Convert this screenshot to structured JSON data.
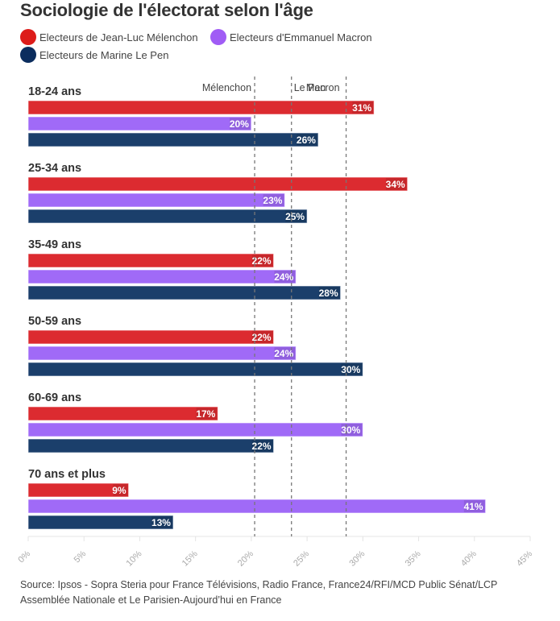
{
  "title": "Sociologie de l'électorat selon l'âge",
  "legend": [
    {
      "label": "Electeurs de Jean-Luc Mélenchon",
      "color": "#dd1c1a"
    },
    {
      "label": "Electeurs d'Emmanuel Macron",
      "color": "#a05cf5"
    },
    {
      "label": "Electeurs de Marine Le Pen",
      "color": "#0b2d5e"
    }
  ],
  "source": "Source: Ipsos - Sopra Steria pour France Télévisions, Radio France, France24/RFI/MCD Public Sénat/LCP Assemblée Nationale et Le Parisien-Aujourd’hui en France",
  "chart_data": {
    "type": "bar",
    "orientation": "horizontal",
    "title": "Sociologie de l'électorat selon l'âge",
    "xlabel": "",
    "ylabel": "",
    "xlim": [
      0,
      45
    ],
    "x_ticks": [
      "0%",
      "5%",
      "10%",
      "15%",
      "20%",
      "25%",
      "30%",
      "35%",
      "40%",
      "45%"
    ],
    "x_tick_values": [
      0,
      5,
      10,
      15,
      20,
      25,
      30,
      35,
      40,
      45
    ],
    "grid": false,
    "legend_position": "top-left",
    "categories": [
      "18-24 ans",
      "25-34 ans",
      "35-49 ans",
      "50-59 ans",
      "60-69 ans",
      "70 ans et plus"
    ],
    "series": [
      {
        "name": "Electeurs de Jean-Luc Mélenchon",
        "color": "#dc2b30",
        "values": [
          31,
          34,
          22,
          22,
          17,
          9
        ]
      },
      {
        "name": "Electeurs d'Emmanuel Macron",
        "color": "#a06af7",
        "values": [
          20,
          23,
          24,
          24,
          30,
          41
        ]
      },
      {
        "name": "Electeurs de Marine Le Pen",
        "color": "#1b3f6b",
        "values": [
          26,
          25,
          28,
          30,
          22,
          13
        ]
      }
    ],
    "value_suffix": "%",
    "reference_lines": [
      {
        "label": "Mélenchon",
        "value": 20.3
      },
      {
        "label": "Le Pen",
        "value": 23.6
      },
      {
        "label": "Macron",
        "value": 28.5
      }
    ]
  }
}
